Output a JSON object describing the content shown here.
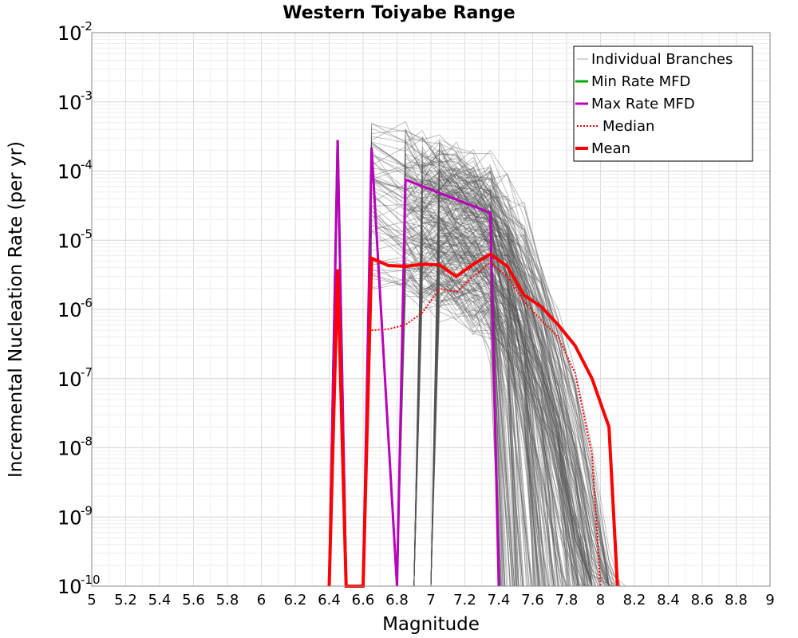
{
  "chart_data": {
    "type": "line",
    "title": "Western Toiyabe Range",
    "xlabel": "Magnitude",
    "ylabel": "Incremental Nucleation Rate (per yr)",
    "xlim": [
      5,
      9
    ],
    "ylim": [
      1e-10,
      0.01
    ],
    "y_scale": "log",
    "grid": true,
    "legend_position": "top-right",
    "x_ticks": [
      "5",
      "5.2",
      "5.4",
      "5.6",
      "5.8",
      "6",
      "6.2",
      "6.4",
      "6.6",
      "6.8",
      "7",
      "7.2",
      "7.4",
      "7.6",
      "7.8",
      "8",
      "8.2",
      "8.4",
      "8.6",
      "8.8",
      "9"
    ],
    "y_ticks": [
      {
        "base": "10",
        "exp": "-2"
      },
      {
        "base": "10",
        "exp": "-3"
      },
      {
        "base": "10",
        "exp": "-4"
      },
      {
        "base": "10",
        "exp": "-5"
      },
      {
        "base": "10",
        "exp": "-6"
      },
      {
        "base": "10",
        "exp": "-7"
      },
      {
        "base": "10",
        "exp": "-8"
      },
      {
        "base": "10",
        "exp": "-9"
      },
      {
        "base": "10",
        "exp": "-10"
      }
    ],
    "colors": {
      "branches": "#555555",
      "min": "#00aa00",
      "max": "#bb00bb",
      "median": "#ff0000",
      "mean": "#ff0000"
    },
    "series": [
      {
        "name": "Individual Branches",
        "style": "thin-gray",
        "x": [
          6.45,
          6.65,
          6.85,
          6.95,
          7.05,
          7.15,
          7.25,
          7.35,
          7.45,
          7.55,
          7.65,
          7.75,
          7.85,
          7.95,
          8.05
        ],
        "y": [
          2e-05,
          0.00013,
          9e-05,
          7e-05,
          6e-05,
          5e-05,
          4e-05,
          3.5e-05,
          2.5e-05,
          1.6e-05,
          9e-06,
          4e-06,
          1.5e-06,
          4e-07,
          8e-08
        ]
      },
      {
        "name": "Min Rate MFD",
        "style": "solid",
        "x": [
          6.4,
          6.45,
          6.5
        ],
        "y": [
          1e-10,
          0.00028,
          1e-10
        ]
      },
      {
        "name": "Max Rate MFD",
        "style": "solid",
        "x": [
          6.4,
          6.45,
          6.5,
          6.6,
          6.65,
          6.8,
          6.85,
          7.35,
          7.4
        ],
        "y": [
          1e-10,
          0.00028,
          1e-10,
          1e-10,
          0.00022,
          1e-10,
          7.5e-05,
          2.5e-05,
          1e-10
        ]
      },
      {
        "name": "Median",
        "style": "dotted",
        "x": [
          6.65,
          6.75,
          6.85,
          6.95,
          7.05,
          7.15,
          7.25,
          7.35,
          7.45,
          7.55,
          7.65,
          7.75,
          7.85,
          7.95,
          8.0
        ],
        "y": [
          5e-07,
          5.2e-07,
          6e-07,
          9e-07,
          2e-06,
          1.8e-06,
          3e-06,
          4.8e-06,
          3e-06,
          1.3e-06,
          7e-07,
          4e-07,
          1.2e-07,
          8e-09,
          1e-10
        ]
      },
      {
        "name": "Mean",
        "style": "thick",
        "x": [
          6.4,
          6.45,
          6.5,
          6.6,
          6.65,
          6.75,
          6.85,
          6.95,
          7.05,
          7.15,
          7.25,
          7.35,
          7.45,
          7.55,
          7.65,
          7.75,
          7.85,
          7.95,
          8.05,
          8.1
        ],
        "y": [
          1e-10,
          3.8e-06,
          1e-10,
          1e-10,
          5.5e-06,
          4.3e-06,
          4.2e-06,
          4.5e-06,
          4.4e-06,
          3e-06,
          4.5e-06,
          6.3e-06,
          4.2e-06,
          1.6e-06,
          1.1e-06,
          6e-07,
          3e-07,
          1e-07,
          2e-08,
          1e-10
        ]
      }
    ]
  }
}
